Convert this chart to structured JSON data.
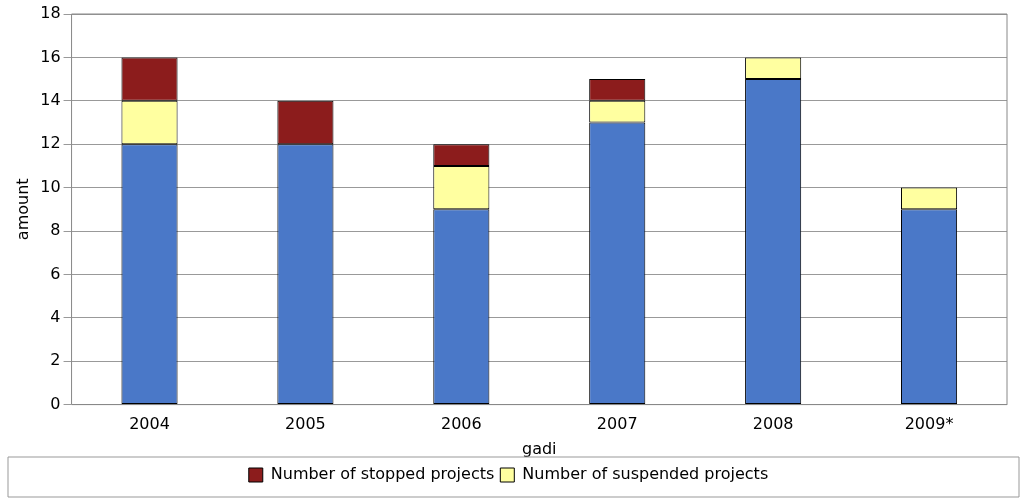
{
  "chart_data": {
    "type": "bar",
    "stacked": true,
    "xlabel": "gadi",
    "ylabel": "amount",
    "categories": [
      "2004",
      "2005",
      "2006",
      "2007",
      "2008",
      "2009*"
    ],
    "series": [
      {
        "color": "#4a78c8",
        "values": [
          12,
          12,
          9,
          13,
          15,
          9
        ]
      },
      {
        "name": "Number of suspended projects",
        "color": "#ffffa0",
        "values": [
          2,
          0,
          2,
          1,
          1,
          1
        ]
      },
      {
        "name": "Number of stopped projects",
        "color": "#8c1c1c",
        "values": [
          2,
          2,
          1,
          1,
          0,
          0
        ]
      }
    ],
    "ylim": [
      0,
      18
    ],
    "yticks": [
      0,
      2,
      4,
      6,
      8,
      10,
      12,
      14,
      16,
      18
    ],
    "grid": "y",
    "legend": "bottom"
  }
}
